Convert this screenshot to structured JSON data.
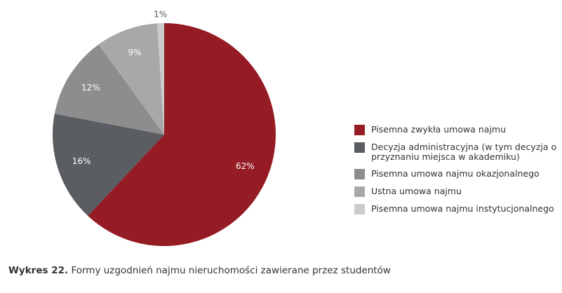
{
  "chart_data": {
    "type": "pie",
    "caption_label": "Wykres 22.",
    "title": "Formy uzgodnień najmu nieruchomości zawierane przez studentów",
    "categories": [
      "Pisemna zwykła umowa najmu",
      "Decyzja administracyjna (w tym decyzja o przyznaniu miejsca w akademiku)",
      "Pisemna umowa najmu okazjonalnego",
      "Ustna umowa najmu",
      "Pisemna umowa najmu instytucjonalnego"
    ],
    "values": [
      62,
      16,
      12,
      9,
      1
    ],
    "value_labels": [
      "62%",
      "16%",
      "12%",
      "9%",
      "1%"
    ],
    "colors": [
      "#951b24",
      "#5a5d62",
      "#8d8d8d",
      "#a8a8a8",
      "#cbcbcb"
    ]
  }
}
